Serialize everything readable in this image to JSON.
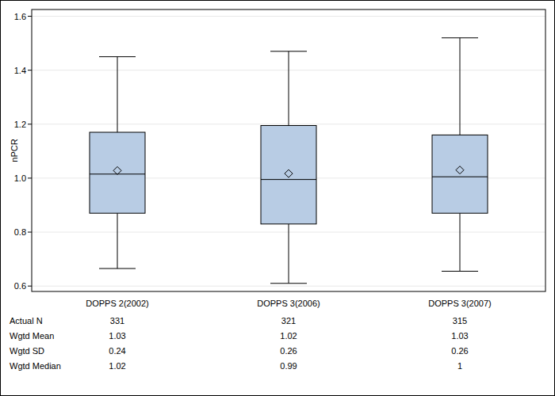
{
  "chart_data": {
    "type": "box",
    "y_label": "nPCR",
    "categories": [
      "DOPPS 2(2002)",
      "DOPPS 3(2006)",
      "DOPPS 3(2007)"
    ],
    "whisker_low": [
      0.665,
      0.61,
      0.655
    ],
    "q1": [
      0.87,
      0.83,
      0.87
    ],
    "median": [
      1.015,
      0.995,
      1.005
    ],
    "q3": [
      1.17,
      1.195,
      1.16
    ],
    "whisker_high": [
      1.45,
      1.47,
      1.52
    ],
    "mean": [
      1.028,
      1.017,
      1.03
    ],
    "color": "#b8cce4",
    "ylim": [
      0.58,
      1.625
    ],
    "yticks": [
      {
        "value": 0.6,
        "label": "0.6"
      },
      {
        "value": 0.8,
        "label": "0.8"
      },
      {
        "value": 1.0,
        "label": "1.0"
      },
      {
        "value": 1.2,
        "label": "1.2"
      },
      {
        "value": 1.4,
        "label": "1.4"
      },
      {
        "value": 1.6,
        "label": "1.6"
      }
    ],
    "grid": true,
    "table": {
      "rows": [
        {
          "label": "Actual N",
          "values": [
            331,
            321,
            315
          ]
        },
        {
          "label": "Wgtd Mean",
          "values": [
            1.03,
            1.02,
            1.03
          ]
        },
        {
          "label": "Wgtd SD",
          "values": [
            0.24,
            0.26,
            0.26
          ]
        },
        {
          "label": "Wgtd Median",
          "values": [
            1.02,
            0.99,
            1
          ]
        }
      ]
    }
  }
}
